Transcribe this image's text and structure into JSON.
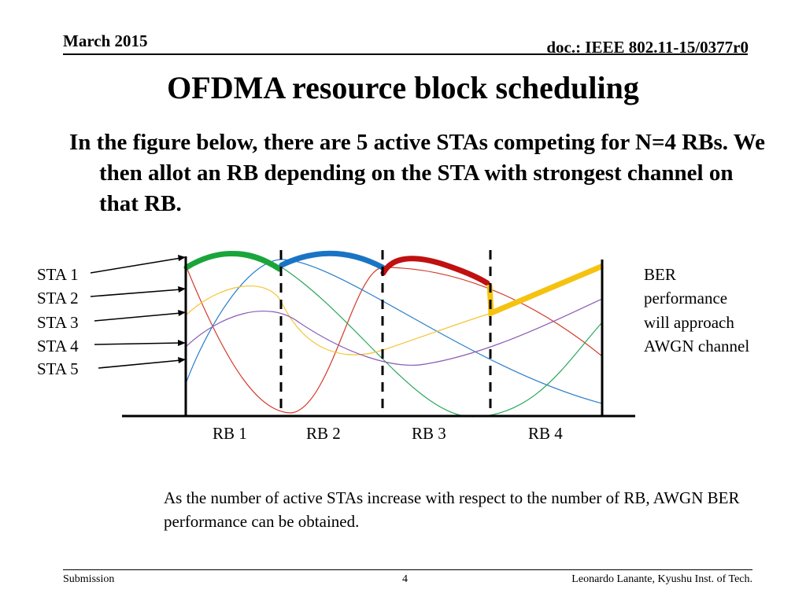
{
  "header": {
    "date": "March 2015",
    "doc_id": "doc.: IEEE 802.11-15/0377r0"
  },
  "title": "OFDMA resource block scheduling",
  "intro": "In the figure below, there are 5 active STAs competing for N=4 RBs. We then allot an RB depending on the STA with strongest channel on that RB.",
  "diagram": {
    "sta_labels": [
      "STA 1",
      "STA 2",
      "STA 3",
      "STA 4",
      "STA 5"
    ],
    "rb_labels": [
      "RB 1",
      "RB 2",
      "RB 3",
      "RB 4"
    ],
    "ber_note": [
      "BER",
      "performance",
      "will approach",
      "AWGN channel"
    ],
    "colors": {
      "green": "#1aa53a",
      "blue": "#1a74c4",
      "red": "#c01010",
      "yellow": "#f5c210",
      "thin_red": "#d23a2a",
      "thin_blue": "#2a7ec8",
      "thin_green": "#2aa75a",
      "thin_yellow": "#f4c534",
      "thin_purple": "#8a5cb5"
    }
  },
  "note": "As the number of active STAs increase with respect to the number of RB, AWGN BER performance can be obtained.",
  "footer": {
    "left": "Submission",
    "page": "4",
    "right": "Leonardo Lanante, Kyushu Inst. of Tech."
  }
}
